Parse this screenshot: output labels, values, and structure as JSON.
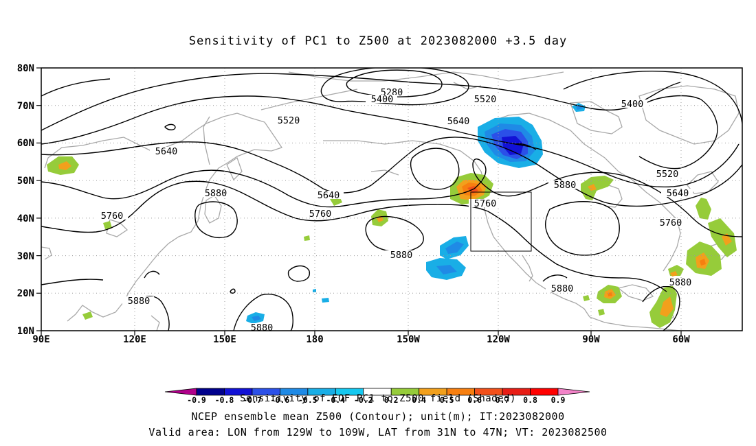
{
  "title": "Sensitivity of PC1 to Z500 at 2023082000 +3.5 day",
  "map": {
    "lat_labels": [
      "80N",
      "70N",
      "60N",
      "50N",
      "40N",
      "30N",
      "20N",
      "10N"
    ],
    "lon_labels": [
      "90E",
      "120E",
      "150E",
      "180",
      "150W",
      "120W",
      "90W",
      "60W"
    ],
    "extent": {
      "lon_west": "90E",
      "lon_east": "50W",
      "lat_south": "10N",
      "lat_north": "80N"
    },
    "contour_labels": [
      "5280",
      "5400",
      "5400",
      "5520",
      "5520",
      "5520",
      "5640",
      "5640",
      "5640",
      "5640",
      "5760",
      "5760",
      "5760",
      "5760",
      "5880",
      "5880",
      "5880",
      "5880",
      "5880",
      "5880",
      "5880"
    ],
    "valid_area": {
      "lon": [
        "129W",
        "109W"
      ],
      "lat": [
        "31N",
        "47N"
      ]
    }
  },
  "colorbar": {
    "ticks": [
      "-0.9",
      "-0.8",
      "-0.7",
      "-0.6",
      "-0.5",
      "-0.4",
      "-0.2",
      "0.2",
      "0.4",
      "0.5",
      "0.6",
      "0.7",
      "0.8",
      "0.9"
    ],
    "colors": [
      "#b0008a",
      "#00008c",
      "#1212d6",
      "#2b50e8",
      "#1f8ae6",
      "#19aee6",
      "#15c8f0",
      "#ffffff",
      "#96cc3a",
      "#f2a01c",
      "#f77f10",
      "#f2501a",
      "#e81d15",
      "#ff0000",
      "#f283c8"
    ]
  },
  "captions": {
    "line1": "Sensitivity of EOF PC1 to Z500 field (Shaded)",
    "line2": "NCEP ensemble mean Z500 (Contour); unit(m); IT:2023082000",
    "line3": "Valid area: LON from 129W to 109W, LAT from 31N to 47N; VT: 2023082500"
  },
  "colors": {
    "coast": "#a8a8a8",
    "contour": "#000000",
    "grid": "#9a9a9a"
  }
}
